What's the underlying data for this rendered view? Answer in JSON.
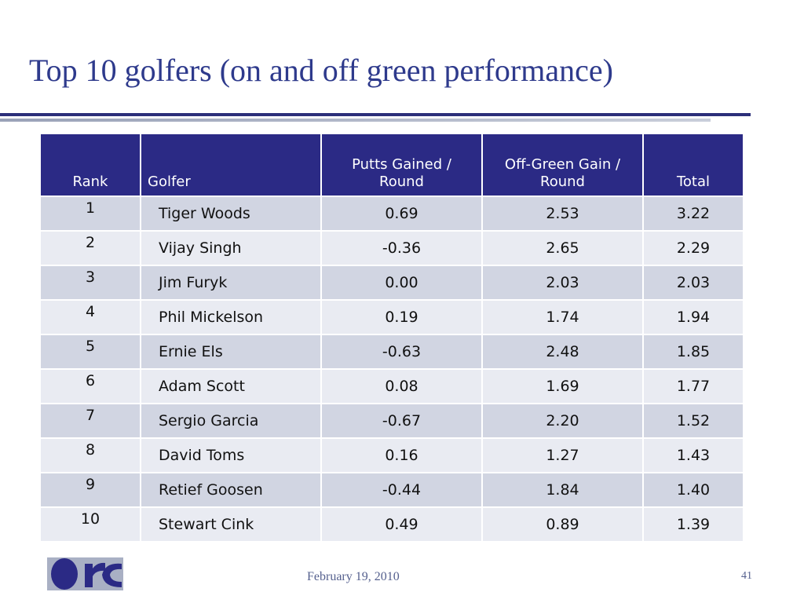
{
  "slide": {
    "title": "Top 10 golfers (on and off green performance)",
    "footer_date": "February 19, 2010",
    "page_number": "41"
  },
  "colors": {
    "title": "#2e3a8c",
    "header_bg": "#2b2a85",
    "row_odd": "#d1d5e2",
    "row_even": "#e9ebf2"
  },
  "table": {
    "headers": [
      "Rank",
      "Golfer",
      "Putts Gained / Round",
      "Off-Green Gain / Round",
      "Total"
    ],
    "rows": [
      [
        "1",
        "Tiger Woods",
        "0.69",
        "2.53",
        "3.22"
      ],
      [
        "2",
        "Vijay Singh",
        "-0.36",
        "2.65",
        "2.29"
      ],
      [
        "3",
        "Jim Furyk",
        "0.00",
        "2.03",
        "2.03"
      ],
      [
        "4",
        "Phil Mickelson",
        "0.19",
        "1.74",
        "1.94"
      ],
      [
        "5",
        "Ernie Els",
        "-0.63",
        "2.48",
        "1.85"
      ],
      [
        "6",
        "Adam Scott",
        "0.08",
        "1.69",
        "1.77"
      ],
      [
        "7",
        "Sergio Garcia",
        "-0.67",
        "2.20",
        "1.52"
      ],
      [
        "8",
        "David Toms",
        "0.16",
        "1.27",
        "1.43"
      ],
      [
        "9",
        "Retief Goosen",
        "-0.44",
        "1.84",
        "1.40"
      ],
      [
        "10",
        "Stewart Cink",
        "0.49",
        "0.89",
        "1.39"
      ]
    ]
  },
  "logo": {
    "icon": "company-logo-icon"
  }
}
